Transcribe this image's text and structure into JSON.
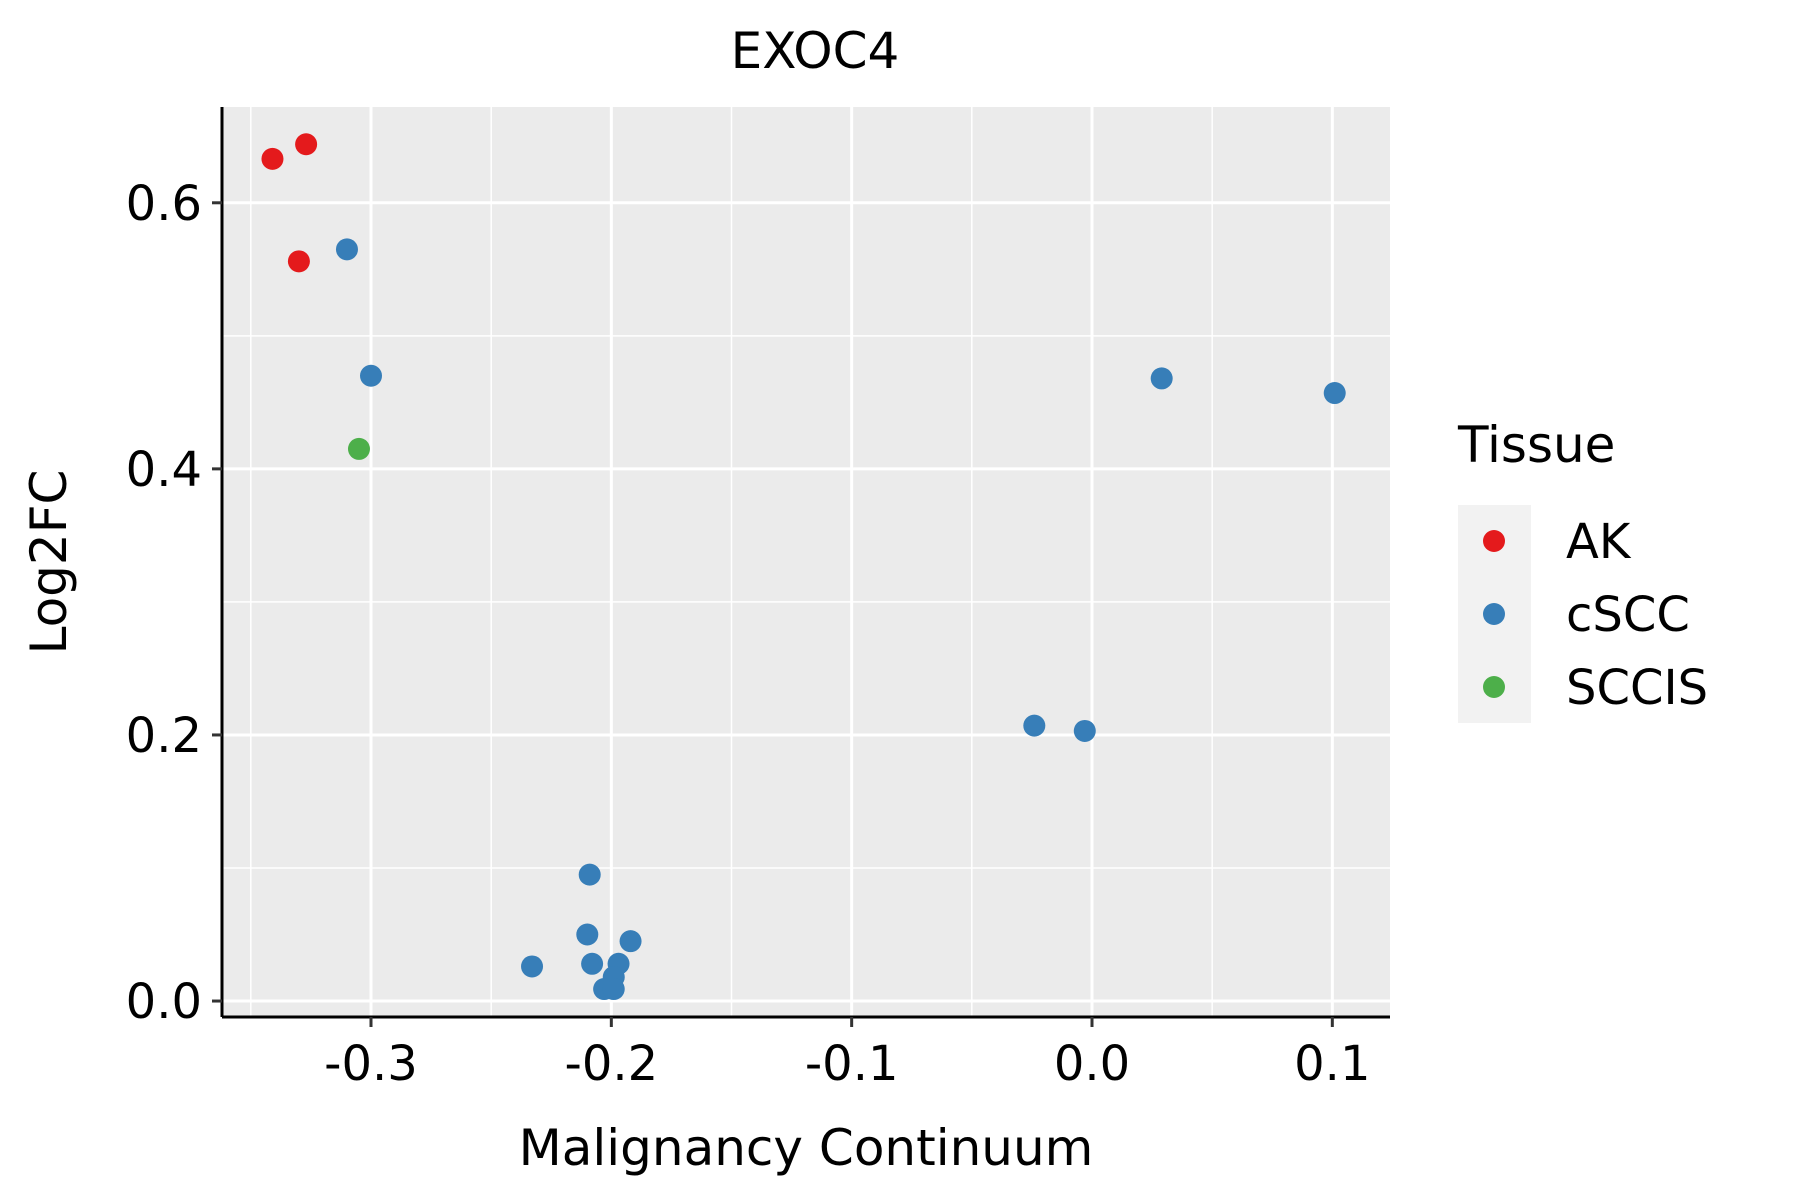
{
  "chart_data": {
    "type": "scatter",
    "title": "EXOC4",
    "xlabel": "Malignancy Continuum",
    "ylabel": "Log2FC",
    "xlim": [
      -0.362,
      0.124
    ],
    "ylim": [
      -0.012,
      0.672
    ],
    "xticks": [
      -0.3,
      -0.2,
      -0.1,
      0.0,
      0.1
    ],
    "xtick_labels": [
      "-0.3",
      "-0.2",
      "-0.1",
      "0.0",
      "0.1"
    ],
    "yticks": [
      0.0,
      0.2,
      0.4,
      0.6
    ],
    "ytick_labels": [
      "0.0",
      "0.2",
      "0.4",
      "0.6"
    ],
    "x_minor_grid": [
      -0.35,
      -0.25,
      -0.15,
      -0.05,
      0.05
    ],
    "y_minor_grid": [
      0.1,
      0.3,
      0.5
    ],
    "grid": true,
    "background": "#EBEBEB",
    "legend": {
      "title": "Tissue",
      "position": "right",
      "entries": [
        {
          "label": "AK",
          "color": "#E41A1C"
        },
        {
          "label": "cSCC",
          "color": "#377EB8"
        },
        {
          "label": "SCCIS",
          "color": "#4DAF4A"
        }
      ]
    },
    "series": [
      {
        "name": "AK",
        "color": "#E41A1C",
        "points": [
          {
            "x": -0.341,
            "y": 0.633
          },
          {
            "x": -0.327,
            "y": 0.644
          },
          {
            "x": -0.33,
            "y": 0.556
          }
        ]
      },
      {
        "name": "cSCC",
        "color": "#377EB8",
        "points": [
          {
            "x": -0.31,
            "y": 0.565
          },
          {
            "x": -0.3,
            "y": 0.47
          },
          {
            "x": 0.029,
            "y": 0.468
          },
          {
            "x": 0.101,
            "y": 0.457
          },
          {
            "x": -0.024,
            "y": 0.207
          },
          {
            "x": -0.003,
            "y": 0.203
          },
          {
            "x": -0.209,
            "y": 0.095
          },
          {
            "x": -0.21,
            "y": 0.05
          },
          {
            "x": -0.192,
            "y": 0.045
          },
          {
            "x": -0.233,
            "y": 0.026
          },
          {
            "x": -0.208,
            "y": 0.028
          },
          {
            "x": -0.197,
            "y": 0.028
          },
          {
            "x": -0.199,
            "y": 0.018
          },
          {
            "x": -0.203,
            "y": 0.009
          },
          {
            "x": -0.199,
            "y": 0.009
          }
        ]
      },
      {
        "name": "SCCIS",
        "color": "#4DAF4A",
        "points": [
          {
            "x": -0.305,
            "y": 0.415
          }
        ]
      }
    ]
  }
}
